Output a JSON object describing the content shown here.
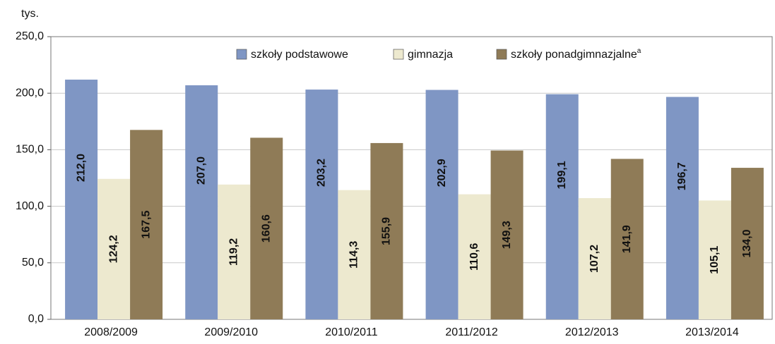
{
  "chart_data": {
    "type": "bar",
    "y_axis_label": "tys.",
    "categories": [
      "2008/2009",
      "2009/2010",
      "2010/2011",
      "2011/2012",
      "2012/2013",
      "2013/2014"
    ],
    "series": [
      {
        "name": "szkoły podstawowe",
        "color": "#7f96c4",
        "values": [
          212.0,
          207.0,
          203.2,
          202.9,
          199.1,
          196.7
        ],
        "value_labels": [
          "212,0",
          "207,0",
          "203,2",
          "202,9",
          "199,1",
          "196,7"
        ]
      },
      {
        "name": "gimnazja",
        "color": "#ede9cf",
        "values": [
          124.2,
          119.2,
          114.3,
          110.6,
          107.2,
          105.1
        ],
        "value_labels": [
          "124,2",
          "119,2",
          "114,3",
          "110,6",
          "107,2",
          "105,1"
        ]
      },
      {
        "name": "szkoły ponadgimnazjalne",
        "name_note": "a",
        "color": "#8f7b57",
        "values": [
          167.5,
          160.6,
          155.9,
          149.3,
          141.9,
          134.0
        ],
        "value_labels": [
          "167,5",
          "160,6",
          "155,9",
          "149,3",
          "141,9",
          "134,0"
        ]
      }
    ],
    "ylim": [
      0,
      250
    ],
    "yticks": [
      {
        "value": 0,
        "label": "0,0"
      },
      {
        "value": 50,
        "label": "50,0"
      },
      {
        "value": 100,
        "label": "100,0"
      },
      {
        "value": 150,
        "label": "150,0"
      },
      {
        "value": 200,
        "label": "200,0"
      },
      {
        "value": 250,
        "label": "250,0"
      }
    ],
    "grid": true
  }
}
